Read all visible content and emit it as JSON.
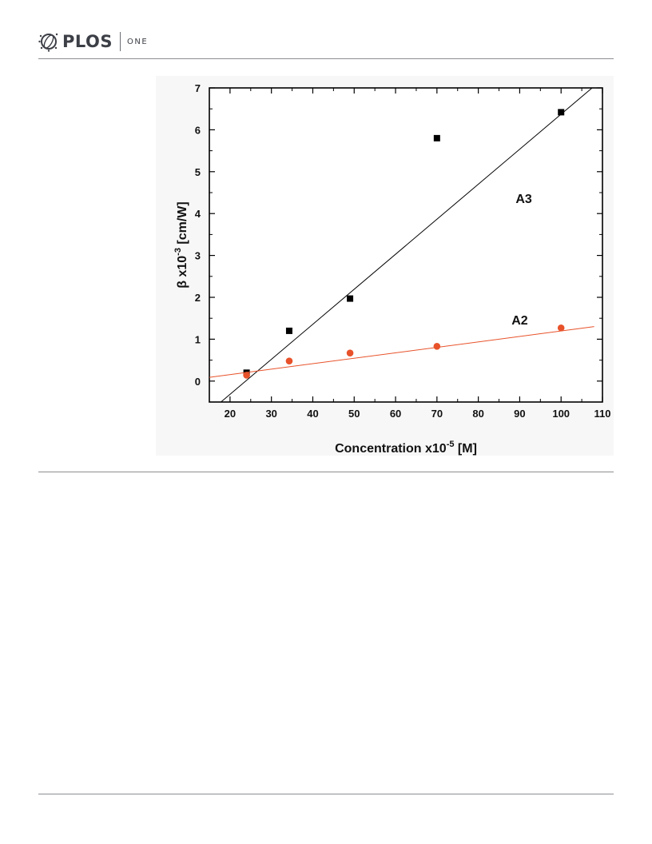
{
  "header": {
    "logo_text": "PLOS",
    "logo_sub": "ONE",
    "logo_icon": "plos-globe-icon"
  },
  "chart_data": {
    "type": "scatter",
    "xlabel": {
      "main": "Concentration  x10",
      "sup": "-5",
      "tail": " [M]"
    },
    "ylabel": {
      "main": "β x10",
      "sup": "-3",
      "tail": " [cm/W]"
    },
    "xlim": [
      15,
      110
    ],
    "ylim": [
      -0.5,
      7
    ],
    "x_ticks": [
      20,
      30,
      40,
      50,
      60,
      70,
      80,
      90,
      100,
      110
    ],
    "y_ticks": [
      0,
      1,
      2,
      3,
      4,
      5,
      6,
      7
    ],
    "series": [
      {
        "name": "A3",
        "color": "#000000",
        "marker": "square",
        "x": [
          24,
          34.3,
          49,
          70,
          100
        ],
        "y": [
          0.2,
          1.2,
          1.97,
          5.8,
          6.42
        ],
        "fit": {
          "x": [
            17.8,
            107.5
          ],
          "y": [
            -0.5,
            7.0
          ]
        }
      },
      {
        "name": "A2",
        "color": "#e8522a",
        "marker": "circle",
        "x": [
          24,
          34.3,
          49,
          70,
          100
        ],
        "y": [
          0.14,
          0.48,
          0.67,
          0.83,
          1.27
        ],
        "fit": {
          "x": [
            15,
            108
          ],
          "y": [
            0.09,
            1.3
          ]
        }
      }
    ],
    "annotations": [
      {
        "text": "A3",
        "x": 91,
        "y": 4.25,
        "color": "#000000"
      },
      {
        "text": "A2",
        "x": 90,
        "y": 1.35,
        "color": "#e8522a"
      }
    ]
  }
}
